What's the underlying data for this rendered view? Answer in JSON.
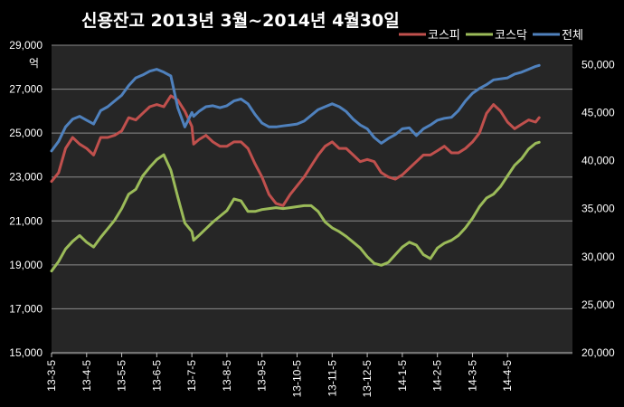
{
  "chart_data": {
    "type": "line",
    "title": "신용잔고 2013년 3월~2014년 4월30일",
    "ylabel_left_unit": "억",
    "y_left_lim": [
      15000,
      29000
    ],
    "y_left_ticks": [
      "15,000",
      "17,000",
      "19,000",
      "21,000",
      "23,000",
      "25,000",
      "27,000",
      "29,000"
    ],
    "y_right_lim": [
      20000,
      52000
    ],
    "y_right_ticks": [
      "20,000",
      "25,000",
      "30,000",
      "35,000",
      "40,000",
      "45,000",
      "50,000"
    ],
    "x_tick_labels": [
      "13-3-5",
      "13-4-5",
      "13-5-5",
      "13-6-5",
      "13-7-5",
      "13-8-5",
      "13-9-5",
      "13-10-5",
      "13-11-5",
      "13-12-5",
      "14-1-5",
      "14-2-5",
      "14-3-5",
      "14-4-5"
    ],
    "x_range": [
      0,
      14.85
    ],
    "grid": true,
    "legend_position": "top-right",
    "series": [
      {
        "name": "코스피",
        "axis": "left",
        "color": "#c0504d",
        "x": [
          0,
          0.2,
          0.4,
          0.6,
          0.8,
          1.0,
          1.2,
          1.4,
          1.6,
          1.8,
          2.0,
          2.2,
          2.4,
          2.6,
          2.8,
          3.0,
          3.2,
          3.4,
          3.6,
          3.8,
          4.0,
          4.05,
          4.2,
          4.4,
          4.6,
          4.8,
          5.0,
          5.2,
          5.4,
          5.6,
          5.8,
          6.0,
          6.2,
          6.4,
          6.6,
          6.8,
          7.0,
          7.2,
          7.4,
          7.6,
          7.8,
          8.0,
          8.2,
          8.4,
          8.6,
          8.8,
          9.0,
          9.2,
          9.4,
          9.6,
          9.8,
          10.0,
          10.2,
          10.4,
          10.6,
          10.8,
          11.0,
          11.2,
          11.4,
          11.6,
          11.8,
          12.0,
          12.2,
          12.4,
          12.6,
          12.8,
          13.0,
          13.2,
          13.4,
          13.6,
          13.8,
          13.9
        ],
        "y": [
          22800,
          23200,
          24300,
          24800,
          24500,
          24300,
          24000,
          24800,
          24800,
          24900,
          25100,
          25700,
          25600,
          25900,
          26200,
          26300,
          26200,
          26700,
          26500,
          26000,
          25300,
          24500,
          24700,
          24900,
          24600,
          24400,
          24400,
          24600,
          24600,
          24300,
          23600,
          23000,
          22200,
          21800,
          21700,
          22200,
          22600,
          23000,
          23500,
          24000,
          24400,
          24600,
          24300,
          24300,
          24000,
          23700,
          23800,
          23700,
          23200,
          23000,
          22900,
          23100,
          23400,
          23700,
          24000,
          24000,
          24200,
          24400,
          24100,
          24100,
          24300,
          24600,
          25000,
          25900,
          26300,
          26000,
          25500,
          25200,
          25400,
          25600,
          25500,
          25700
        ]
      },
      {
        "name": "코스닥",
        "axis": "right",
        "color": "#9bbb59",
        "x": [
          0,
          0.2,
          0.4,
          0.6,
          0.8,
          1.0,
          1.2,
          1.4,
          1.6,
          1.8,
          2.0,
          2.2,
          2.4,
          2.6,
          2.8,
          3.0,
          3.2,
          3.4,
          3.6,
          3.8,
          4.0,
          4.05,
          4.2,
          4.4,
          4.6,
          4.8,
          5.0,
          5.2,
          5.4,
          5.6,
          5.8,
          6.0,
          6.2,
          6.4,
          6.6,
          6.8,
          7.0,
          7.2,
          7.4,
          7.6,
          7.8,
          8.0,
          8.2,
          8.4,
          8.6,
          8.8,
          9.0,
          9.2,
          9.4,
          9.6,
          9.8,
          10.0,
          10.2,
          10.4,
          10.6,
          10.8,
          11.0,
          11.2,
          11.4,
          11.6,
          11.8,
          12.0,
          12.2,
          12.4,
          12.6,
          12.8,
          13.0,
          13.2,
          13.4,
          13.6,
          13.8,
          13.9
        ],
        "y": [
          28500,
          29500,
          30800,
          31600,
          32200,
          31500,
          31000,
          32000,
          32900,
          33800,
          35000,
          36500,
          37000,
          38400,
          39300,
          40100,
          40600,
          39000,
          36200,
          33500,
          32600,
          31700,
          32200,
          32900,
          33600,
          34200,
          34800,
          36000,
          35800,
          34700,
          34700,
          34900,
          35000,
          35100,
          35000,
          35100,
          35200,
          35300,
          35300,
          34700,
          33600,
          33000,
          32600,
          32100,
          31500,
          30900,
          30000,
          29300,
          29100,
          29400,
          30200,
          31000,
          31500,
          31200,
          30200,
          29800,
          30900,
          31400,
          31700,
          32200,
          33000,
          34000,
          35200,
          36100,
          36500,
          37300,
          38400,
          39500,
          40200,
          41200,
          41800,
          41900
        ]
      },
      {
        "name": "전체",
        "axis": "right",
        "color": "#4f81bd",
        "x": [
          0,
          0.2,
          0.4,
          0.6,
          0.8,
          1.0,
          1.2,
          1.4,
          1.6,
          1.8,
          2.0,
          2.2,
          2.4,
          2.6,
          2.8,
          3.0,
          3.2,
          3.4,
          3.6,
          3.8,
          4.0,
          4.05,
          4.2,
          4.4,
          4.6,
          4.8,
          5.0,
          5.2,
          5.4,
          5.6,
          5.8,
          6.0,
          6.2,
          6.4,
          6.6,
          6.8,
          7.0,
          7.2,
          7.4,
          7.6,
          7.8,
          8.0,
          8.2,
          8.4,
          8.6,
          8.8,
          9.0,
          9.2,
          9.4,
          9.6,
          9.8,
          10.0,
          10.2,
          10.4,
          10.6,
          10.8,
          11.0,
          11.2,
          11.4,
          11.6,
          11.8,
          12.0,
          12.2,
          12.4,
          12.6,
          12.8,
          13.0,
          13.2,
          13.4,
          13.6,
          13.8,
          13.9
        ],
        "y": [
          41000,
          42000,
          43500,
          44300,
          44600,
          44200,
          43800,
          45200,
          45600,
          46200,
          46800,
          47800,
          48600,
          48900,
          49300,
          49500,
          49200,
          48800,
          45500,
          43500,
          45000,
          44600,
          45100,
          45600,
          45700,
          45500,
          45700,
          46200,
          46400,
          45900,
          44800,
          43900,
          43500,
          43500,
          43600,
          43700,
          43800,
          44100,
          44700,
          45300,
          45600,
          45900,
          45600,
          45100,
          44300,
          43700,
          43300,
          42400,
          41800,
          42300,
          42700,
          43300,
          43400,
          42600,
          43300,
          43700,
          44200,
          44400,
          44500,
          45200,
          46200,
          47000,
          47500,
          47900,
          48400,
          48500,
          48600,
          49000,
          49200,
          49500,
          49800,
          49900
        ]
      }
    ]
  }
}
